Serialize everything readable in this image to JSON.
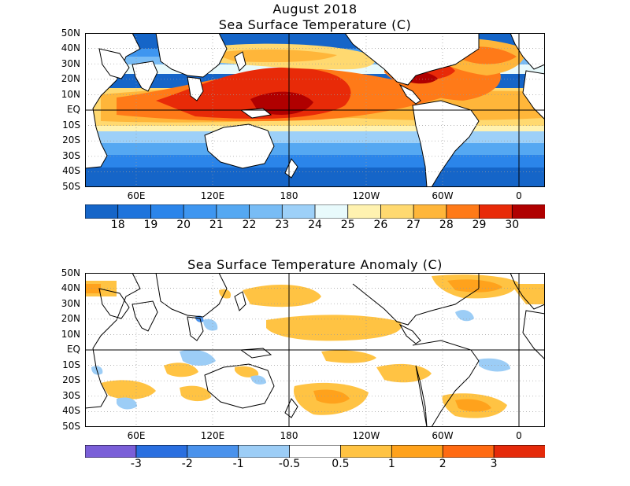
{
  "titles": {
    "main": "August 2018",
    "sst": "Sea Surface Temperature (C)",
    "anomaly": "Sea Surface Temperature Anomaly (C)"
  },
  "axes": {
    "lat_labels": [
      "50N",
      "40N",
      "30N",
      "20N",
      "10N",
      "EQ",
      "10S",
      "20S",
      "30S",
      "40S",
      "50S"
    ],
    "lon_labels": [
      "60E",
      "120E",
      "180",
      "120W",
      "60W",
      "0"
    ]
  },
  "sst_colorbar": {
    "labels": [
      "18",
      "19",
      "20",
      "21",
      "22",
      "23",
      "24",
      "25",
      "26",
      "27",
      "28",
      "29",
      "30"
    ],
    "colors": [
      "#1565c8",
      "#1e74dc",
      "#2b85ea",
      "#3e96f0",
      "#55a8f2",
      "#78bcf5",
      "#9dd0f8",
      "#e8fafc",
      "#fff2b0",
      "#ffd970",
      "#ffb63a",
      "#ff7a18",
      "#e82a08",
      "#b00000"
    ]
  },
  "anomaly_colorbar": {
    "labels": [
      "-3",
      "-2",
      "-1",
      "-0.5",
      "0.5",
      "1",
      "2",
      "3"
    ],
    "colors": [
      "#7a5fd8",
      "#2a6fe0",
      "#4a92ec",
      "#9ccdf6",
      "#ffffff",
      "#ffc343",
      "#ffa21c",
      "#ff6a12",
      "#e52a0a"
    ]
  }
}
